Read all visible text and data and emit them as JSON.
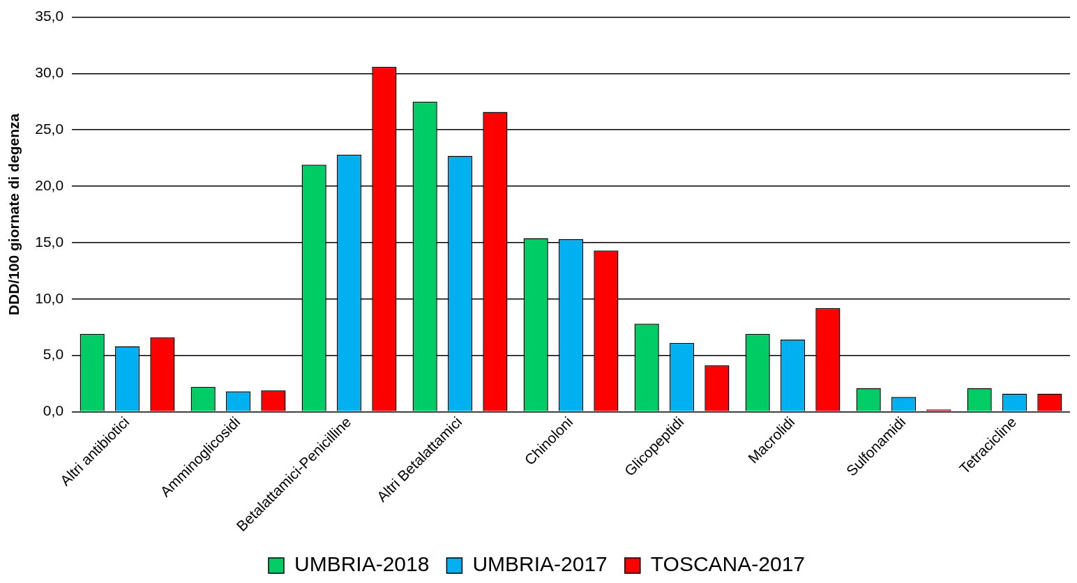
{
  "chart_data": {
    "type": "bar",
    "ylabel": "DDD/100 giornate di degenza",
    "categories": [
      "Altri antibiotici",
      "Amminoglicosidi",
      "Betalattamici-Penicilline",
      "Altri Betalattamici",
      "Chinoloni",
      "Glicopeptidi",
      "Macrolidi",
      "Sulfonamidi",
      "Tetracicline"
    ],
    "series": [
      {
        "name": "UMBRIA-2018",
        "color": "#00cc66",
        "values": [
          6.9,
          2.2,
          21.9,
          27.5,
          15.4,
          7.8,
          6.9,
          2.1,
          2.1
        ]
      },
      {
        "name": "UMBRIA-2017",
        "color": "#00b0f0",
        "values": [
          5.8,
          1.8,
          22.8,
          22.7,
          15.3,
          6.1,
          6.4,
          1.3,
          1.6
        ]
      },
      {
        "name": "TOSCANA-2017",
        "color": "#ff0000",
        "values": [
          6.6,
          1.9,
          30.6,
          26.6,
          14.3,
          4.1,
          9.2,
          0.2,
          1.6
        ]
      }
    ],
    "ylim": [
      0,
      35
    ],
    "yticks": [
      {
        "value": 0,
        "label": "0,0"
      },
      {
        "value": 5,
        "label": "5,0"
      },
      {
        "value": 10,
        "label": "10,0"
      },
      {
        "value": 15,
        "label": "15,0"
      },
      {
        "value": 20,
        "label": "20,0"
      },
      {
        "value": 25,
        "label": "25,0"
      },
      {
        "value": 30,
        "label": "30,0"
      },
      {
        "value": 35,
        "label": "35,0"
      }
    ],
    "grid": "y",
    "legend": "bottom"
  }
}
